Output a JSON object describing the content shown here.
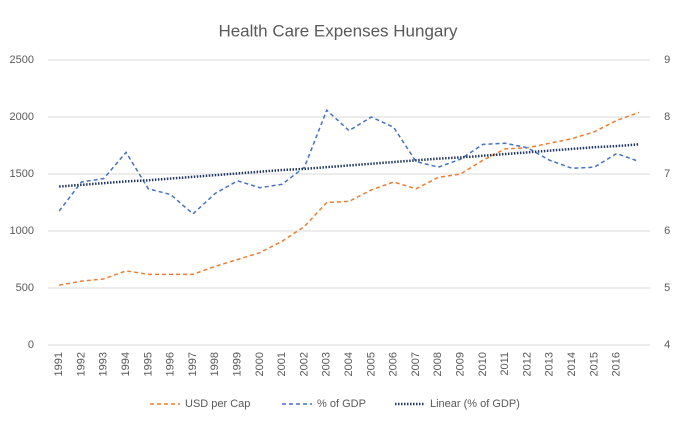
{
  "chart_data": {
    "type": "line",
    "title": "Health Care Expenses Hungary",
    "categories": [
      "1991",
      "1992",
      "1993",
      "1994",
      "1995",
      "1996",
      "1997",
      "1998",
      "1999",
      "2000",
      "2001",
      "2002",
      "2003",
      "2004",
      "2005",
      "2006",
      "2007",
      "2008",
      "2009",
      "2010",
      "2011",
      "2012",
      "2013",
      "2014",
      "2015",
      "2016",
      null
    ],
    "series": [
      {
        "name": "USD per Cap",
        "color": "#ed7d31",
        "dash": "4 3",
        "axis": "y",
        "values": [
          525,
          560,
          580,
          650,
          620,
          620,
          620,
          690,
          750,
          810,
          910,
          1040,
          1250,
          1260,
          1360,
          1430,
          1370,
          1470,
          1500,
          1620,
          1720,
          1730,
          1770,
          1810,
          1870,
          1970,
          2040
        ]
      },
      {
        "name": "% of GDP",
        "color": "#4472c4",
        "dash": "4 3",
        "axis": "y2",
        "values": [
          6.35,
          6.86,
          6.92,
          7.38,
          6.74,
          6.64,
          6.3,
          6.66,
          6.88,
          6.76,
          6.82,
          7.12,
          8.12,
          7.76,
          8.0,
          7.82,
          7.22,
          7.12,
          7.26,
          7.52,
          7.54,
          7.46,
          7.24,
          7.1,
          7.12,
          7.36,
          7.22
        ]
      },
      {
        "name": "Linear (% of GDP)",
        "color": "#203864",
        "dash": "1.5 1.5",
        "axis": "y2",
        "values": [
          6.78,
          6.81,
          6.84,
          6.87,
          6.89,
          6.92,
          6.95,
          6.98,
          7.01,
          7.04,
          7.07,
          7.09,
          7.12,
          7.15,
          7.18,
          7.21,
          7.24,
          7.27,
          7.29,
          7.32,
          7.35,
          7.38,
          7.41,
          7.44,
          7.47,
          7.49,
          7.52
        ]
      }
    ],
    "ylim": [
      0,
      2500
    ],
    "yticks": [
      0,
      500,
      1000,
      1500,
      2000,
      2500
    ],
    "y2lim": [
      4,
      9
    ],
    "y2ticks": [
      4,
      5,
      6,
      7,
      8,
      9
    ],
    "grid": true,
    "legend": "bottom"
  }
}
